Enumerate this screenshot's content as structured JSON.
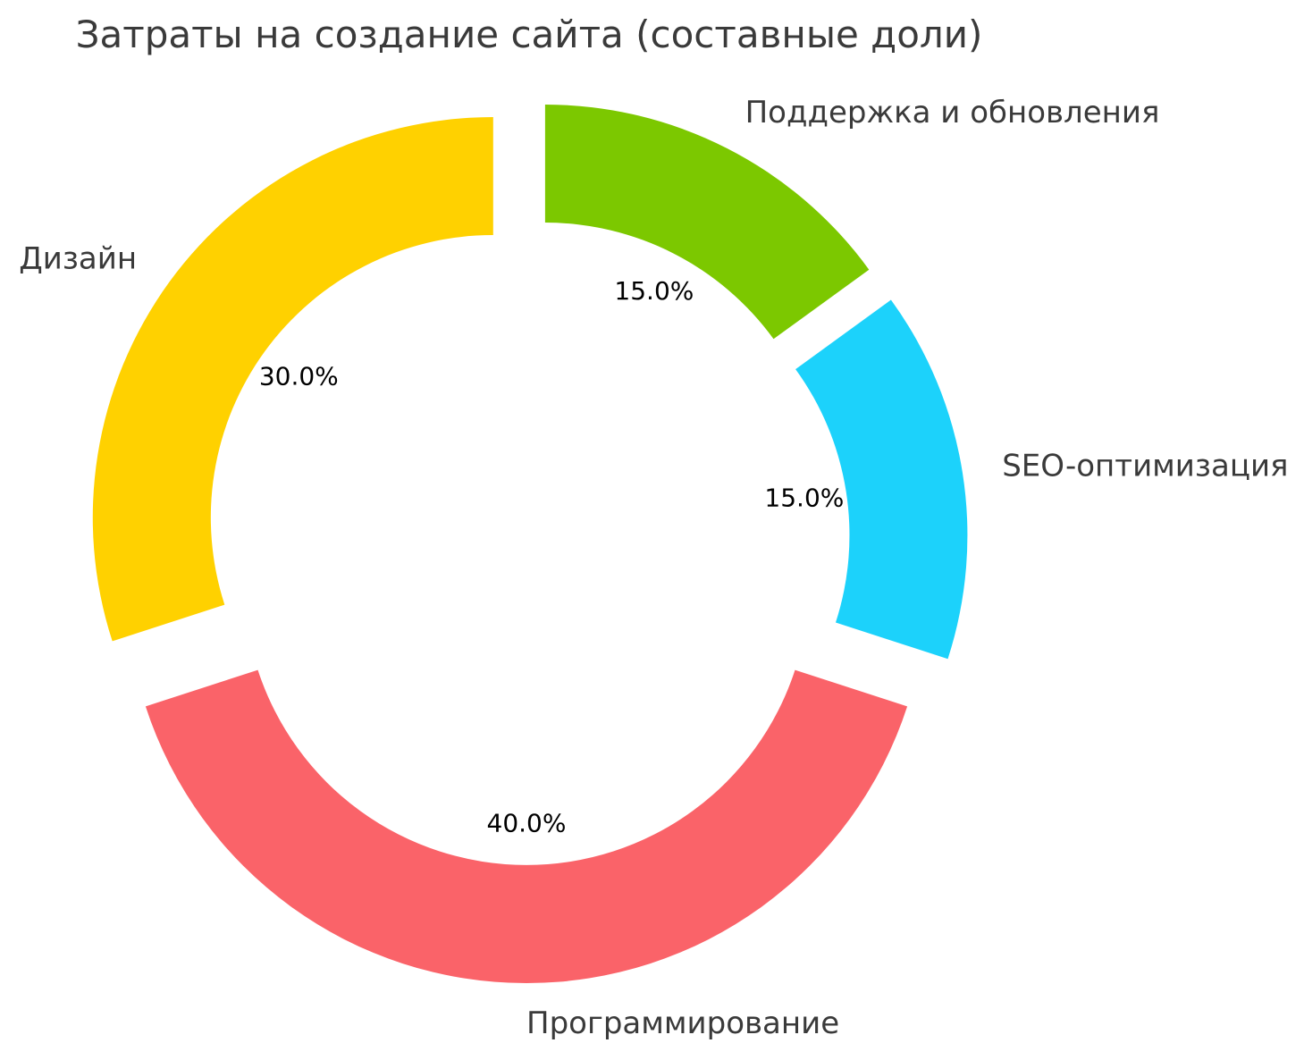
{
  "chart_data": {
    "type": "pie",
    "subtype": "donut",
    "title": "Затраты на создание сайта (составные доли)",
    "legend_position": "none",
    "layout_hints": {
      "start_angle": 90,
      "direction": "clockwise",
      "donut_hole_ratio": 0.705,
      "all_slices_exploded": true,
      "category_labels_outside": true,
      "percent_labels_inside_hole": true,
      "background": "#FFFFFF"
    },
    "slices": [
      {
        "label": "Поддержка и обновления",
        "value": 15.0,
        "pct_label": "15.0%",
        "color": "#7CC800"
      },
      {
        "label": "SEO-оптимизация",
        "value": 15.0,
        "pct_label": "15.0%",
        "color": "#1CD2FB"
      },
      {
        "label": "Программирование",
        "value": 40.0,
        "pct_label": "40.0%",
        "color": "#FA6369"
      },
      {
        "label": "Дизайн",
        "value": 30.0,
        "pct_label": "30.0%",
        "color": "#FFD100"
      }
    ]
  },
  "text_colors": {
    "title": "#3A3A3A",
    "slice_label": "#3A3A3A",
    "pct_label": "#000000"
  }
}
